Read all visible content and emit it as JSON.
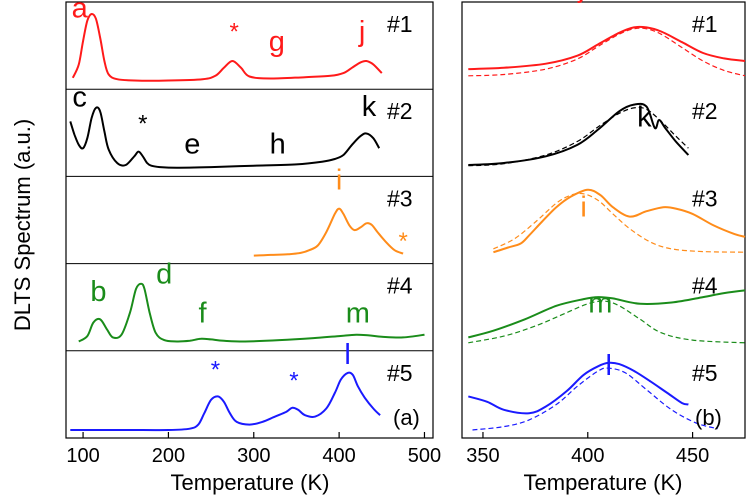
{
  "figure": {
    "ylabel": "DLTS Spectrum (a.u.)",
    "panel_a": {
      "tag": "(a)",
      "xlabel": "Temperature (K)",
      "xlim": [
        80,
        510
      ],
      "xticks": [
        100,
        200,
        300,
        400,
        500
      ],
      "sample_labels": [
        "#1",
        "#2",
        "#3",
        "#4",
        "#5"
      ]
    },
    "panel_b": {
      "tag": "(b)",
      "xlabel": "Temperature (K)",
      "xlim": [
        340,
        475
      ],
      "xticks": [
        350,
        400,
        450
      ],
      "sample_labels": [
        "#1",
        "#2",
        "#3",
        "#4",
        "#5"
      ]
    }
  },
  "colors": {
    "s1": "#ff1a1a",
    "s2": "#000000",
    "s3": "#ff8c1a",
    "s4": "#1a8c1a",
    "s5": "#1a1aff",
    "axis": "#000000"
  },
  "chart_data": [
    {
      "type": "line",
      "panel": "a",
      "xlabel": "Temperature (K)",
      "ylabel": "DLTS Spectrum (a.u.)",
      "xlim": [
        80,
        510
      ],
      "series": [
        {
          "name": "#1",
          "color": "#ff1a1a",
          "row": 0,
          "x": [
            88,
            95,
            100,
            105,
            110,
            115,
            120,
            125,
            130,
            140,
            160,
            200,
            240,
            255,
            265,
            275,
            285,
            295,
            320,
            360,
            390,
            405,
            415,
            425,
            432,
            440,
            450
          ],
          "y": [
            0.05,
            0.25,
            0.6,
            0.9,
            1.0,
            0.93,
            0.65,
            0.3,
            0.1,
            0.03,
            0.01,
            0.01,
            0.03,
            0.08,
            0.2,
            0.3,
            0.2,
            0.07,
            0.04,
            0.06,
            0.08,
            0.12,
            0.2,
            0.28,
            0.3,
            0.25,
            0.12
          ]
        },
        {
          "name": "#2",
          "color": "#000000",
          "row": 1,
          "x": [
            85,
            90,
            95,
            100,
            105,
            110,
            115,
            120,
            125,
            130,
            140,
            150,
            160,
            165,
            170,
            175,
            180,
            190,
            210,
            250,
            300,
            350,
            380,
            395,
            405,
            415,
            425,
            432,
            440,
            447
          ],
          "y": [
            0.7,
            0.5,
            0.35,
            0.3,
            0.45,
            0.75,
            0.9,
            0.85,
            0.55,
            0.28,
            0.08,
            0.05,
            0.18,
            0.25,
            0.18,
            0.08,
            0.04,
            0.02,
            0.01,
            0.02,
            0.04,
            0.06,
            0.1,
            0.14,
            0.2,
            0.35,
            0.48,
            0.52,
            0.45,
            0.3
          ]
        },
        {
          "name": "#3",
          "color": "#ff8c1a",
          "row": 2,
          "x": [
            300,
            320,
            340,
            355,
            365,
            375,
            385,
            395,
            400,
            405,
            412,
            418,
            425,
            432,
            438,
            445,
            455,
            465,
            475
          ],
          "y": [
            0.0,
            0.01,
            0.02,
            0.04,
            0.08,
            0.15,
            0.35,
            0.62,
            0.7,
            0.62,
            0.45,
            0.38,
            0.42,
            0.48,
            0.46,
            0.35,
            0.2,
            0.08,
            0.03
          ]
        },
        {
          "name": "#4",
          "color": "#1a8c1a",
          "row": 3,
          "x": [
            95,
            105,
            112,
            120,
            128,
            135,
            145,
            155,
            162,
            168,
            172,
            178,
            185,
            195,
            210,
            225,
            238,
            250,
            265,
            290,
            330,
            370,
            400,
            420,
            435,
            450,
            475,
            500
          ],
          "y": [
            0.02,
            0.1,
            0.3,
            0.35,
            0.2,
            0.08,
            0.12,
            0.45,
            0.8,
            0.88,
            0.8,
            0.45,
            0.15,
            0.04,
            0.02,
            0.03,
            0.06,
            0.05,
            0.03,
            0.02,
            0.04,
            0.07,
            0.1,
            0.12,
            0.11,
            0.09,
            0.08,
            0.12
          ]
        },
        {
          "name": "#5",
          "color": "#1a1aff",
          "row": 4,
          "x": [
            85,
            150,
            200,
            225,
            235,
            242,
            250,
            258,
            265,
            272,
            280,
            295,
            310,
            325,
            338,
            345,
            352,
            360,
            372,
            385,
            395,
            402,
            410,
            416,
            422,
            430,
            440,
            448
          ],
          "y": [
            0.0,
            0.0,
            0.0,
            0.02,
            0.08,
            0.25,
            0.45,
            0.5,
            0.42,
            0.25,
            0.12,
            0.08,
            0.12,
            0.2,
            0.27,
            0.33,
            0.3,
            0.22,
            0.2,
            0.32,
            0.55,
            0.75,
            0.85,
            0.82,
            0.65,
            0.48,
            0.32,
            0.22
          ]
        }
      ],
      "annotations": [
        {
          "text": "a",
          "x": 96,
          "row": 0,
          "level": 0.95,
          "color": "#ff1a1a"
        },
        {
          "text": "*",
          "x": 277,
          "row": 0,
          "level": 0.62,
          "color": "#ff1a1a"
        },
        {
          "text": "g",
          "x": 327,
          "row": 0,
          "level": 0.45,
          "color": "#ff1a1a"
        },
        {
          "text": "j",
          "x": 427,
          "row": 0,
          "level": 0.6,
          "color": "#ff1a1a"
        },
        {
          "text": "c",
          "x": 96,
          "row": 1,
          "level": 0.92,
          "color": "#000000"
        },
        {
          "text": "*",
          "x": 170,
          "row": 1,
          "level": 0.55,
          "color": "#000000"
        },
        {
          "text": "e",
          "x": 228,
          "row": 1,
          "level": 0.22,
          "color": "#000000"
        },
        {
          "text": "h",
          "x": 328,
          "row": 1,
          "level": 0.22,
          "color": "#000000"
        },
        {
          "text": "k",
          "x": 435,
          "row": 1,
          "level": 0.78,
          "color": "#000000"
        },
        {
          "text": "i",
          "x": 400,
          "row": 2,
          "level": 0.98,
          "color": "#ff8c1a"
        },
        {
          "text": "*",
          "x": 475,
          "row": 2,
          "level": 0.1,
          "color": "#ff8c1a"
        },
        {
          "text": "b",
          "x": 118,
          "row": 3,
          "level": 0.62,
          "color": "#1a8c1a"
        },
        {
          "text": "d",
          "x": 195,
          "row": 3,
          "level": 0.88,
          "color": "#1a8c1a"
        },
        {
          "text": "f",
          "x": 240,
          "row": 3,
          "level": 0.3,
          "color": "#1a8c1a"
        },
        {
          "text": "m",
          "x": 422,
          "row": 3,
          "level": 0.3,
          "color": "#1a8c1a"
        },
        {
          "text": "*",
          "x": 255,
          "row": 4,
          "level": 0.78,
          "color": "#1a1aff"
        },
        {
          "text": "*",
          "x": 347,
          "row": 4,
          "level": 0.62,
          "color": "#1a1aff"
        },
        {
          "text": "l",
          "x": 410,
          "row": 4,
          "level": 0.98,
          "color": "#1a1aff"
        }
      ]
    },
    {
      "type": "line",
      "panel": "b",
      "xlabel": "Temperature (K)",
      "xlim": [
        340,
        475
      ],
      "series": [
        {
          "name": "#1",
          "color": "#ff1a1a",
          "row": 0,
          "style": "solid",
          "x": [
            343,
            360,
            380,
            395,
            405,
            415,
            422,
            428,
            435,
            445,
            455,
            465,
            475
          ],
          "y": [
            0.18,
            0.2,
            0.26,
            0.38,
            0.55,
            0.72,
            0.8,
            0.8,
            0.74,
            0.58,
            0.42,
            0.34,
            0.3
          ]
        },
        {
          "name": "#1 fit",
          "color": "#ff1a1a",
          "row": 0,
          "style": "dashed",
          "x": [
            343,
            360,
            380,
            395,
            405,
            415,
            422,
            428,
            435,
            445,
            455,
            465,
            475
          ],
          "y": [
            0.08,
            0.1,
            0.18,
            0.33,
            0.52,
            0.7,
            0.78,
            0.78,
            0.7,
            0.5,
            0.3,
            0.16,
            0.08
          ]
        },
        {
          "name": "#2",
          "color": "#000000",
          "row": 1,
          "style": "solid",
          "x": [
            343,
            360,
            380,
            395,
            405,
            415,
            422,
            428,
            432,
            434,
            437,
            442,
            448
          ],
          "y": [
            0.05,
            0.08,
            0.18,
            0.35,
            0.58,
            0.85,
            0.95,
            0.92,
            0.6,
            0.72,
            0.6,
            0.4,
            0.2
          ]
        },
        {
          "name": "#2 fit",
          "color": "#000000",
          "row": 1,
          "style": "dashed",
          "x": [
            343,
            360,
            380,
            395,
            405,
            415,
            422,
            428,
            435,
            442,
            448
          ],
          "y": [
            0.04,
            0.07,
            0.2,
            0.4,
            0.62,
            0.82,
            0.9,
            0.88,
            0.7,
            0.48,
            0.3
          ]
        },
        {
          "name": "#3",
          "color": "#ff8c1a",
          "row": 2,
          "style": "solid",
          "x": [
            355,
            362,
            368,
            372,
            378,
            385,
            392,
            400,
            406,
            412,
            420,
            428,
            436,
            442,
            450,
            460,
            470,
            475
          ],
          "y": [
            0.05,
            0.12,
            0.18,
            0.3,
            0.5,
            0.72,
            0.88,
            0.98,
            0.9,
            0.72,
            0.58,
            0.66,
            0.72,
            0.7,
            0.62,
            0.45,
            0.32,
            0.28
          ]
        },
        {
          "name": "#3 fit",
          "color": "#ff8c1a",
          "row": 2,
          "style": "dashed",
          "x": [
            355,
            365,
            375,
            385,
            392,
            398,
            405,
            412,
            420,
            430,
            440,
            455,
            475
          ],
          "y": [
            0.1,
            0.25,
            0.5,
            0.78,
            0.9,
            0.92,
            0.82,
            0.62,
            0.4,
            0.2,
            0.1,
            0.06,
            0.05
          ]
        },
        {
          "name": "#4",
          "color": "#1a8c1a",
          "row": 3,
          "style": "solid",
          "x": [
            343,
            355,
            370,
            385,
            398,
            405,
            412,
            425,
            440,
            455,
            465,
            475
          ],
          "y": [
            0.08,
            0.18,
            0.35,
            0.55,
            0.65,
            0.68,
            0.66,
            0.58,
            0.6,
            0.68,
            0.74,
            0.78
          ]
        },
        {
          "name": "#4 fit",
          "color": "#1a8c1a",
          "row": 3,
          "style": "dashed",
          "x": [
            343,
            360,
            375,
            390,
            400,
            408,
            415,
            425,
            435,
            450,
            475
          ],
          "y": [
            0.0,
            0.1,
            0.25,
            0.45,
            0.58,
            0.62,
            0.55,
            0.35,
            0.15,
            0.04,
            0.0
          ]
        },
        {
          "name": "#5",
          "color": "#1a1aff",
          "row": 4,
          "style": "solid",
          "x": [
            343,
            352,
            360,
            372,
            380,
            390,
            398,
            405,
            410,
            415,
            422,
            430,
            438,
            445,
            448
          ],
          "y": [
            0.5,
            0.42,
            0.3,
            0.25,
            0.35,
            0.58,
            0.82,
            0.95,
            1.0,
            0.98,
            0.88,
            0.72,
            0.55,
            0.4,
            0.38
          ]
        },
        {
          "name": "#5 fit",
          "color": "#1a1aff",
          "row": 4,
          "style": "dashed",
          "x": [
            345,
            360,
            372,
            385,
            395,
            405,
            410,
            418,
            428,
            440,
            452,
            462
          ],
          "y": [
            0.0,
            0.05,
            0.15,
            0.38,
            0.65,
            0.88,
            0.92,
            0.85,
            0.6,
            0.3,
            0.1,
            0.02
          ]
        }
      ],
      "annotations": [
        {
          "text": "j",
          "x": 397,
          "row": 0,
          "level": 1.25,
          "color": "#ff1a1a"
        },
        {
          "text": "k",
          "x": 427,
          "row": 1,
          "level": 0.62,
          "color": "#000000"
        },
        {
          "text": "i",
          "x": 398,
          "row": 2,
          "level": 0.58,
          "color": "#ff8c1a"
        },
        {
          "text": "m",
          "x": 406,
          "row": 3,
          "level": 0.45,
          "color": "#1a8c1a"
        },
        {
          "text": "l",
          "x": 410,
          "row": 4,
          "level": 0.82,
          "color": "#1a1aff"
        }
      ]
    }
  ]
}
